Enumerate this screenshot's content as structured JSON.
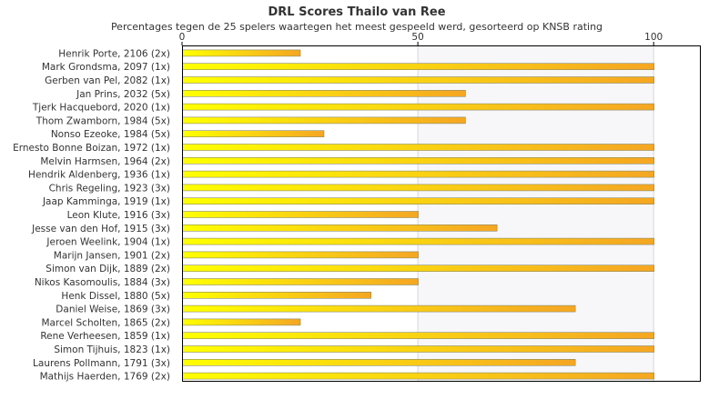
{
  "chart_data": {
    "type": "bar",
    "orientation": "horizontal",
    "title": "DRL Scores Thailo van Ree",
    "subtitle": "Percentages tegen de 25 spelers waartegen het meest gespeeld werd, gesorteerd op KNSB rating",
    "xlabel": "",
    "ylabel": "",
    "xlim": [
      0,
      110
    ],
    "ticks": [
      0,
      50,
      100
    ],
    "tick_labels": [
      "0",
      "50",
      "100"
    ],
    "grid": true,
    "legend": "none",
    "categories": [
      "Henrik Porte, 2106 (2x)",
      "Mark Grondsma, 2097 (1x)",
      "Gerben van Pel, 2082 (1x)",
      "Jan Prins, 2032 (5x)",
      "Tjerk Hacquebord, 2020 (1x)",
      "Thom Zwamborn, 1984 (5x)",
      "Nonso Ezeoke, 1984 (5x)",
      "Ernesto Bonne Boizan, 1972 (1x)",
      "Melvin Harmsen, 1964 (2x)",
      "Hendrik Aldenberg, 1936 (1x)",
      "Chris Regeling, 1923 (3x)",
      "Jaap Kamminga, 1919 (1x)",
      "Leon Klute, 1916 (3x)",
      "Jesse van den Hof, 1915 (3x)",
      "Jeroen Weelink, 1904 (1x)",
      "Marijn Jansen, 1901 (2x)",
      "Simon van Dijk, 1889 (2x)",
      "Nikos Kasomoulis, 1884 (3x)",
      "Henk Dissel, 1880 (5x)",
      "Daniel Weise, 1869 (3x)",
      "Marcel Scholten, 1865 (2x)",
      "Rene Verheesen, 1859 (1x)",
      "Simon Tijhuis, 1823 (1x)",
      "Laurens Pollmann, 1791 (3x)",
      "Mathijs Haerden, 1769 (2x)"
    ],
    "values": [
      25,
      100,
      100,
      60,
      100,
      60,
      30,
      100,
      100,
      100,
      100,
      100,
      50,
      66.7,
      100,
      50,
      100,
      50,
      40,
      83.3,
      25,
      100,
      100,
      83.3,
      100
    ],
    "colors": {
      "bar_start": "#ffff00",
      "bar_end": "#f5a623",
      "bar_stroke": "#8a8a6a",
      "band_light": "#f7f7fa",
      "band_white": "#ffffff",
      "grid": "#d8d8d8",
      "axis": "#000000",
      "text": "#333333"
    }
  }
}
